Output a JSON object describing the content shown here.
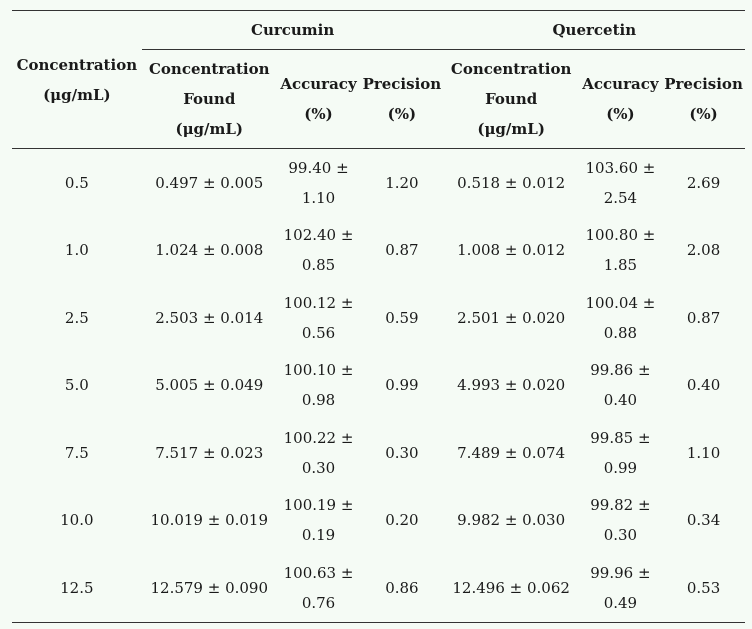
{
  "header": {
    "concentration": [
      "Concentration",
      "(μg/mL)"
    ],
    "groups": [
      "Curcumin",
      "Quercetin"
    ],
    "sub": {
      "found": [
        "Concentration",
        "Found",
        "(μg/mL)"
      ],
      "accuracy": [
        "Accuracy",
        "(%)"
      ],
      "precision": [
        "Precision",
        "(%)"
      ]
    }
  },
  "rows": [
    {
      "conc": "0.5",
      "c_found": "0.497 ± 0.005",
      "c_acc": [
        "99.40 ±",
        "1.10"
      ],
      "c_prec": "1.20",
      "q_found": "0.518 ± 0.012",
      "q_acc": [
        "103.60 ±",
        "2.54"
      ],
      "q_prec": "2.69"
    },
    {
      "conc": "1.0",
      "c_found": "1.024 ± 0.008",
      "c_acc": [
        "102.40 ±",
        "0.85"
      ],
      "c_prec": "0.87",
      "q_found": "1.008 ± 0.012",
      "q_acc": [
        "100.80 ±",
        "1.85"
      ],
      "q_prec": "2.08"
    },
    {
      "conc": "2.5",
      "c_found": "2.503 ± 0.014",
      "c_acc": [
        "100.12 ±",
        "0.56"
      ],
      "c_prec": "0.59",
      "q_found": "2.501 ± 0.020",
      "q_acc": [
        "100.04 ±",
        "0.88"
      ],
      "q_prec": "0.87"
    },
    {
      "conc": "5.0",
      "c_found": "5.005 ± 0.049",
      "c_acc": [
        "100.10 ±",
        "0.98"
      ],
      "c_prec": "0.99",
      "q_found": "4.993 ± 0.020",
      "q_acc": [
        "99.86 ±",
        "0.40"
      ],
      "q_prec": "0.40"
    },
    {
      "conc": "7.5",
      "c_found": "7.517 ± 0.023",
      "c_acc": [
        "100.22 ±",
        "0.30"
      ],
      "c_prec": "0.30",
      "q_found": "7.489 ± 0.074",
      "q_acc": [
        "99.85 ±",
        "0.99"
      ],
      "q_prec": "1.10"
    },
    {
      "conc": "10.0",
      "c_found": "10.019 ± 0.019",
      "c_acc": [
        "100.19 ±",
        "0.19"
      ],
      "c_prec": "0.20",
      "q_found": "9.982 ± 0.030",
      "q_acc": [
        "99.82 ±",
        "0.30"
      ],
      "q_prec": "0.34"
    },
    {
      "conc": "12.5",
      "c_found": "12.579 ± 0.090",
      "c_acc": [
        "100.63 ±",
        "0.76"
      ],
      "c_prec": "0.86",
      "q_found": "12.496 ± 0.062",
      "q_acc": [
        "99.96 ±",
        "0.49"
      ],
      "q_prec": "0.53"
    }
  ]
}
